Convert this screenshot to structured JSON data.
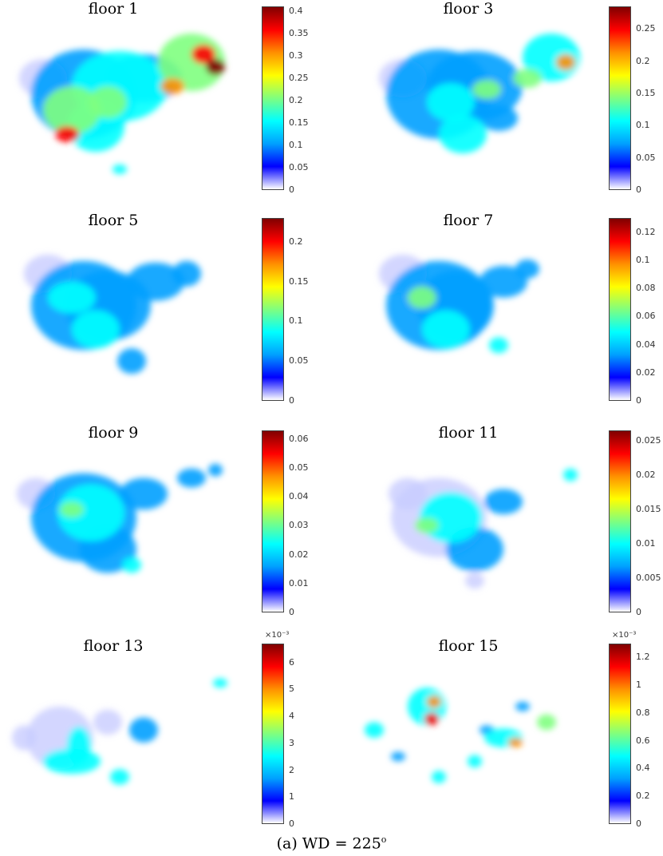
{
  "caption": {
    "prefix": "(a) WD = 225",
    "sup": "o"
  },
  "colormap": [
    "#ffffff",
    "#0000ff",
    "#00a0ff",
    "#00ffff",
    "#7fff7f",
    "#ffff00",
    "#ff9000",
    "#ff0000",
    "#800000"
  ],
  "chart_data": [
    {
      "type": "heatmap",
      "title": "floor 1",
      "colorbar_ticks": [
        "0",
        "0.05",
        "0.1",
        "0.15",
        "0.2",
        "0.25",
        "0.3",
        "0.35",
        "0.4"
      ],
      "clim": [
        0,
        0.41
      ],
      "exponent": ""
    },
    {
      "type": "heatmap",
      "title": "floor 3",
      "colorbar_ticks": [
        "0",
        "0.05",
        "0.1",
        "0.15",
        "0.2",
        "0.25"
      ],
      "clim": [
        0,
        0.285
      ],
      "exponent": ""
    },
    {
      "type": "heatmap",
      "title": "floor 5",
      "colorbar_ticks": [
        "0",
        "0.05",
        "0.1",
        "0.15",
        "0.2"
      ],
      "clim": [
        0,
        0.23
      ],
      "exponent": ""
    },
    {
      "type": "heatmap",
      "title": "floor 7",
      "colorbar_ticks": [
        "0",
        "0.02",
        "0.04",
        "0.06",
        "0.08",
        "0.1",
        "0.12"
      ],
      "clim": [
        0,
        0.13
      ],
      "exponent": ""
    },
    {
      "type": "heatmap",
      "title": "floor 9",
      "colorbar_ticks": [
        "0",
        "0.01",
        "0.02",
        "0.03",
        "0.04",
        "0.05",
        "0.06"
      ],
      "clim": [
        0,
        0.063
      ],
      "exponent": ""
    },
    {
      "type": "heatmap",
      "title": "floor 11",
      "colorbar_ticks": [
        "0",
        "0.005",
        "0.01",
        "0.015",
        "0.02",
        "0.025"
      ],
      "clim": [
        0,
        0.0265
      ],
      "exponent": ""
    },
    {
      "type": "heatmap",
      "title": "floor 13",
      "colorbar_ticks": [
        "0",
        "1",
        "2",
        "3",
        "4",
        "5",
        "6"
      ],
      "clim": [
        0,
        6.7
      ],
      "exponent": "×10⁻³"
    },
    {
      "type": "heatmap",
      "title": "floor 15",
      "colorbar_ticks": [
        "0",
        "0.2",
        "0.4",
        "0.6",
        "0.8",
        "1",
        "1.2"
      ],
      "clim": [
        0,
        1.3
      ],
      "exponent": "×10⁻³"
    }
  ]
}
